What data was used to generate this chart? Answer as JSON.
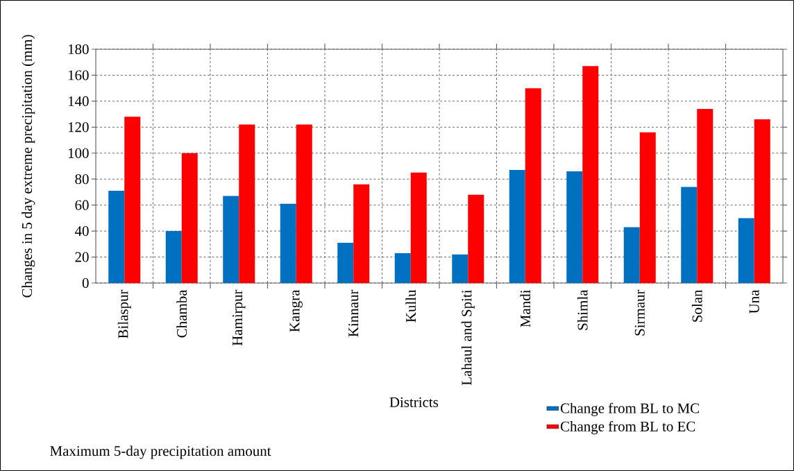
{
  "chart_data": {
    "type": "bar",
    "xlabel": "Districts",
    "ylabel": "Changes in 5 day extreme precipitation (mm)",
    "annotations": [
      "Maximum 5-day precipitation amount"
    ],
    "categories": [
      "Bilaspur",
      "Chamba",
      "Hamirpur",
      "Kangra",
      "Kinnaur",
      "Kullu",
      "Lahaul and Spiti",
      "Mandi",
      "Shimla",
      "Sirmaur",
      "Solan",
      "Una"
    ],
    "series": [
      {
        "name": "Change from BL to MC",
        "color": "#0070c0",
        "values": [
          71,
          40,
          67,
          61,
          31,
          23,
          22,
          87,
          86,
          43,
          74,
          50
        ]
      },
      {
        "name": "Change from BL to EC",
        "color": "#ff0000",
        "values": [
          128,
          100,
          122,
          122,
          76,
          85,
          68,
          150,
          167,
          116,
          134,
          126
        ]
      }
    ],
    "ylim": [
      0,
      180
    ],
    "yticks": [
      0,
      20,
      40,
      60,
      80,
      100,
      120,
      140,
      160,
      180
    ],
    "grid": true,
    "legend": "bottom right"
  }
}
